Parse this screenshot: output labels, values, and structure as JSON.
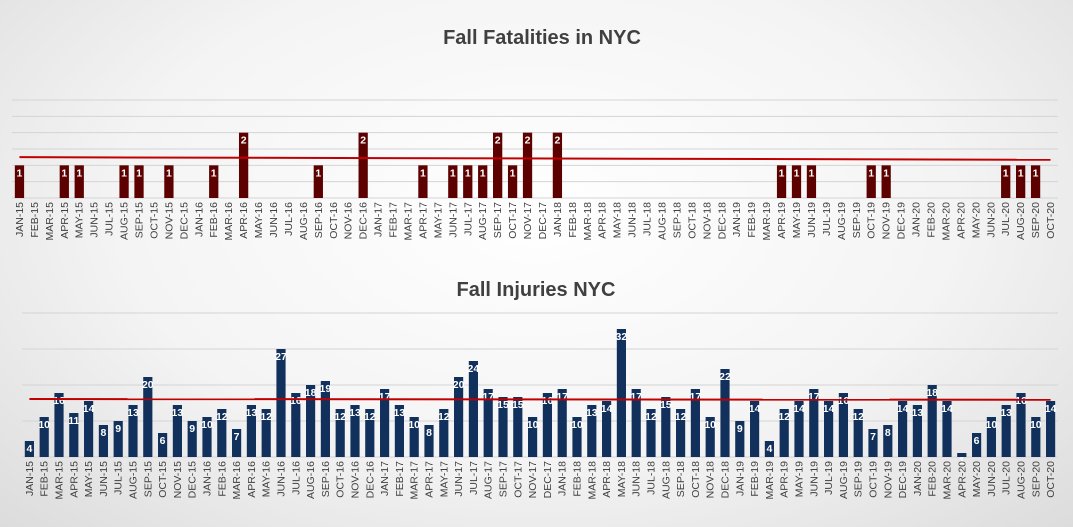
{
  "chart_data": [
    {
      "type": "bar",
      "title": "Fall Fatalities in NYC",
      "xlabel": "",
      "ylabel": "",
      "ylim": [
        0,
        3
      ],
      "grid": true,
      "bar_color": "#5c0000",
      "trend_color": "#c00000",
      "trendline": [
        1.25,
        1.17
      ],
      "categories": [
        "JAN-15",
        "FEB-15",
        "MAR-15",
        "APR-15",
        "MAY-15",
        "JUN-15",
        "JUL-15",
        "AUG-15",
        "SEP-15",
        "OCT-15",
        "NOV-15",
        "DEC-15",
        "JAN-16",
        "FEB-16",
        "MAR-16",
        "APR-16",
        "MAY-16",
        "JUN-16",
        "JUL-16",
        "AUG-16",
        "SEP-16",
        "OCT-16",
        "NOV-16",
        "DEC-16",
        "JAN-17",
        "FEB-17",
        "MAR-17",
        "APR-17",
        "MAY-17",
        "JUN-17",
        "JUL-17",
        "AUG-17",
        "SEP-17",
        "OCT-17",
        "NOV-17",
        "DEC-17",
        "JAN-18",
        "FEB-18",
        "MAR-18",
        "APR-18",
        "MAY-18",
        "JUN-18",
        "JUL-18",
        "AUG-18",
        "SEP-18",
        "OCT-18",
        "NOV-18",
        "DEC-18",
        "JAN-19",
        "FEB-19",
        "MAR-19",
        "APR-19",
        "MAY-19",
        "JUN-19",
        "JUL-19",
        "AUG-19",
        "SEP-19",
        "OCT-19",
        "NOV-19",
        "DEC-19",
        "JAN-20",
        "FEB-20",
        "MAR-20",
        "APR-20",
        "MAY-20",
        "JUN-20",
        "JUL-20",
        "AUG-20",
        "SEP-20",
        "OCT-20"
      ],
      "tick_labels": [
        "JAN-15",
        "FEB-15",
        "MAR-15",
        "APR-15",
        "MAY-15",
        "JUN-15",
        "JUL-15",
        "AUG-15",
        "SEP-15",
        "OCT-15",
        "NOV-15",
        "DEC-15",
        "JAN-16",
        "FEB-16",
        "MAR-16",
        "APR-16",
        "MAY-16",
        "JUN-16",
        "JUL-16",
        "AUG-16",
        "SEP-16",
        "OCT-16",
        "NOV-16",
        "DEC-16",
        "JAN-17",
        "FEB-17",
        "MAR-17",
        "APR-17",
        "MAY-17",
        "JUN-17",
        "JUL-17",
        "AUG-17",
        "SEP-17",
        "OCT-17",
        "NOV-17",
        "DEC-17",
        "JAN-18",
        "FEB-18",
        "MAR-18",
        "APR-18",
        "MAY-18",
        "JUN-18",
        "JUL-18",
        "AUG-18",
        "SEP-18",
        "OCT-18",
        "NOV-18",
        "DEC-18",
        "JAN-19",
        "FEB-19",
        "MAR-19",
        "APR-19",
        "MAY-19",
        "JUN-19",
        "JUL-19",
        "AUG-19",
        "SEP-19",
        "OCT-19",
        "NOV-19",
        "DEC-19",
        "JAN-20",
        "FEB-20",
        "MAR-20",
        "APR-20",
        "MAY-20",
        "JUN-20",
        "JUL-20",
        "AUG-20",
        "SEP-20",
        "OCT-20"
      ],
      "values": [
        1,
        0,
        0,
        1,
        1,
        0,
        0,
        1,
        1,
        0,
        1,
        0,
        0,
        1,
        0,
        2,
        0,
        0,
        0,
        0,
        1,
        0,
        0,
        2,
        0,
        0,
        0,
        1,
        0,
        1,
        1,
        1,
        2,
        1,
        2,
        0,
        2,
        0,
        0,
        0,
        0,
        0,
        0,
        0,
        0,
        0,
        0,
        0,
        0,
        0,
        0,
        1,
        1,
        1,
        0,
        0,
        0,
        1,
        1,
        0,
        0,
        0,
        0,
        0,
        0,
        0,
        1,
        1,
        1,
        0
      ]
    },
    {
      "type": "bar",
      "title": "Fall Injuries NYC",
      "xlabel": "",
      "ylabel": "",
      "ylim": [
        0,
        36
      ],
      "grid": true,
      "bar_color": "#12305c",
      "trend_color": "#c00000",
      "trendline": [
        14.5,
        14.3
      ],
      "categories": [
        "JAN-15",
        "FEB-15",
        "MAR-15",
        "APR-15",
        "MAY-15",
        "JUN-15",
        "JUL-15",
        "AUG-15",
        "SEP-15",
        "OCT-15",
        "NOV-15",
        "DEC-15",
        "JAN-16",
        "FEB-16",
        "MAR-16",
        "APR-16",
        "MAY-16",
        "JUN-16",
        "JUL-16",
        "AUG-16",
        "SEP-16",
        "OCT-16",
        "NOV-16",
        "DEC-16",
        "JAN-17",
        "FEB-17",
        "MAR-17",
        "APR-17",
        "MAY-17",
        "JUN-17",
        "JUL-17",
        "AUG-17",
        "SEP-17",
        "OCT-17",
        "NOV-17",
        "DEC-17",
        "JAN-18",
        "FEB-18",
        "MAR-18",
        "APR-18",
        "MAY-18",
        "JUN-18",
        "JUL-18",
        "AUG-18",
        "SEP-18",
        "OCT-18",
        "NOV-18",
        "DEC-18",
        "JAN-19",
        "FEB-19",
        "MAR-19",
        "APR-19",
        "MAY-19",
        "JUN-19",
        "JUL-19",
        "AUG-19",
        "SEP-19",
        "OCT-19",
        "NOV-19",
        "DEC-19",
        "JAN-20",
        "FEB-20",
        "MAR-20",
        "APR-20",
        "MAY-20",
        "JUN-20",
        "JUL-20",
        "AUG-20",
        "SEP-20",
        "OCT-20"
      ],
      "tick_labels": [
        "JAN-15",
        "FEB-15",
        "MAR-15",
        "APR-15",
        "MAY-15",
        "JUN-15",
        "JUL-15",
        "AUG-15",
        "SEP-15",
        "OCT-15",
        "NOV-15",
        "DEC-15",
        "JAN-16",
        "FEB-16",
        "MAR-16",
        "APR-16",
        "MAY-16",
        "JUN-16",
        "JUL-16",
        "AUG-16",
        "SEP-16",
        "OCT-16",
        "NOV-16",
        "DEC-16",
        "JAN-17",
        "FEB-17",
        "MAR-17",
        "APR-17",
        "MAY-17",
        "JUN-17",
        "JUL-17",
        "AUG-17",
        "SEP-17",
        "OCT-17",
        "NOV-17",
        "DEC-17",
        "JAN-18",
        "FEB-18",
        "MAR-18",
        "APR-18",
        "MAY-18",
        "JUN-18",
        "JUL-18",
        "AUG-18",
        "SEP-18",
        "OCT-18",
        "NOV-18",
        "DEC-18",
        "JAN-19",
        "FEB-19",
        "MAR-19",
        "APR-19",
        "MAY-19",
        "JUN-19",
        "JUL-19",
        "AUG-19",
        "SEP-19",
        "OCT-19",
        "NOV-19",
        "DEC-19",
        "JAN-20",
        "FEB-20",
        "MAR-20",
        "APR-20",
        "MAY-20",
        "JUN-20",
        "JUL-20",
        "AUG-20",
        "SEP-20",
        "OCT-20"
      ],
      "values": [
        4,
        10,
        16,
        11,
        14,
        8,
        9,
        13,
        20,
        6,
        13,
        9,
        10,
        12,
        7,
        13,
        12,
        27,
        16,
        18,
        19,
        12,
        13,
        12,
        17,
        13,
        10,
        8,
        12,
        20,
        24,
        17,
        15,
        15,
        10,
        16,
        17,
        10,
        13,
        14,
        32,
        17,
        12,
        15,
        12,
        17,
        10,
        22,
        9,
        14,
        4,
        12,
        14,
        17,
        14,
        16,
        12,
        7,
        8,
        14,
        13,
        18,
        14,
        1,
        6,
        10,
        13,
        16,
        10,
        14
      ]
    }
  ]
}
